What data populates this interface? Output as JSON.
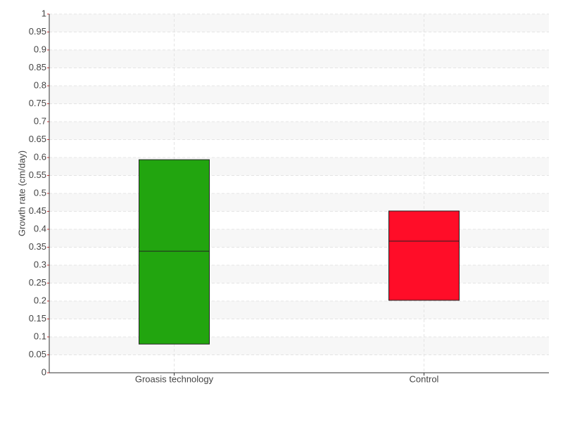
{
  "chart_data": {
    "type": "box",
    "y_label": "Growth rate (cm/day)",
    "categories": [
      "Groasis technology",
      "Control"
    ],
    "q1": [
      0.08,
      0.202
    ],
    "median": [
      0.339,
      0.367
    ],
    "q3": [
      0.594,
      0.451
    ],
    "colors": [
      "#22a50f",
      "#ff0d28"
    ],
    "ylim": [
      0,
      1
    ],
    "yticks": [
      0,
      0.05,
      0.1,
      0.15,
      0.2,
      0.25,
      0.3,
      0.35,
      0.4,
      0.45,
      0.5,
      0.55,
      0.6,
      0.65,
      0.7,
      0.75,
      0.8,
      0.85,
      0.9,
      0.95,
      1
    ],
    "grid": true
  }
}
